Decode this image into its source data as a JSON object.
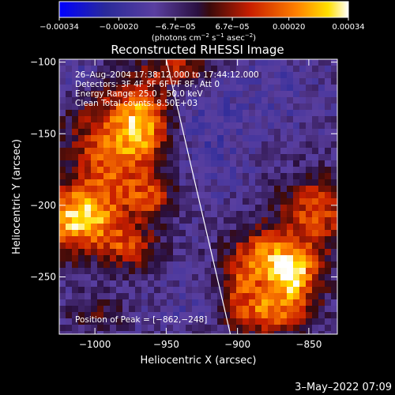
{
  "chart_data": {
    "type": "heatmap",
    "title": "Reconstructed RHESSI Image",
    "xlabel": "Heliocentric X (arcsec)",
    "ylabel": "Heliocentric Y (arcsec)",
    "xlim": [
      -1025,
      -830
    ],
    "ylim": [
      -290,
      -98
    ],
    "x_ticks": [
      -1000,
      -950,
      -900,
      -850
    ],
    "x_tick_labels": [
      "−1000",
      "−950",
      "−900",
      "−850"
    ],
    "y_ticks": [
      -250,
      -200,
      -150,
      -100
    ],
    "y_tick_labels": [
      "−250",
      "−200",
      "−150",
      "−100"
    ],
    "colorbar": {
      "range": [
        -0.00034,
        0.00034
      ],
      "ticks": [
        -0.00034,
        -0.0002,
        -6.7e-05,
        6.7e-05,
        0.0002,
        0.00034
      ],
      "tick_labels": [
        "−0.00034",
        "−0.00020",
        "−6.7e−05",
        "6.7e−05",
        "0.00020",
        "0.00034"
      ],
      "unit_parts": [
        "(photons cm",
        "−2",
        " s",
        "−1",
        " asec",
        "−2",
        ")"
      ]
    },
    "annotations": [
      "26–Aug–2004 17:38:12.000 to 17:44:12.000",
      "Detectors: 3F 4F 5F 6F 7F 8F, Att 0",
      "Energy Range: 25.0 – 50.0 keV",
      "Clean    Total counts: 8.50E+03"
    ],
    "peak_label": "Position of Peak = [−862,−248]",
    "limb_line": [
      [
        -950,
        -98
      ],
      [
        -905,
        -290
      ]
    ],
    "blobs": [
      {
        "x": -1012,
        "y": -210,
        "sx": 20,
        "sy": 16,
        "v": 0.00034
      },
      {
        "x": -985,
        "y": -160,
        "sx": 22,
        "sy": 30,
        "v": 0.00026
      },
      {
        "x": -965,
        "y": -140,
        "sx": 12,
        "sy": 16,
        "v": 0.0002
      },
      {
        "x": -975,
        "y": -230,
        "sx": 14,
        "sy": 10,
        "v": 0.00016
      },
      {
        "x": -960,
        "y": -195,
        "sx": 10,
        "sy": 10,
        "v": 0.00014
      },
      {
        "x": -940,
        "y": -105,
        "sx": 16,
        "sy": 8,
        "v": 0.00018
      },
      {
        "x": -862,
        "y": -248,
        "sx": 14,
        "sy": 14,
        "v": 0.00034
      },
      {
        "x": -845,
        "y": -205,
        "sx": 18,
        "sy": 18,
        "v": 0.00022
      },
      {
        "x": -885,
        "y": -235,
        "sx": 16,
        "sy": 14,
        "v": 0.0002
      },
      {
        "x": -880,
        "y": -275,
        "sx": 20,
        "sy": 12,
        "v": 0.00024
      },
      {
        "x": -900,
        "y": -255,
        "sx": 8,
        "sy": 10,
        "v": 0.00012
      },
      {
        "x": -1000,
        "y": -275,
        "sx": 14,
        "sy": 8,
        "v": 8e-05
      },
      {
        "x": -935,
        "y": -270,
        "sx": 14,
        "sy": 10,
        "v": -8e-05
      },
      {
        "x": -920,
        "y": -150,
        "sx": 20,
        "sy": 30,
        "v": -0.0001
      },
      {
        "x": -870,
        "y": -120,
        "sx": 20,
        "sy": 20,
        "v": -8e-05
      },
      {
        "x": -1010,
        "y": -110,
        "sx": 10,
        "sy": 10,
        "v": -0.00012
      }
    ]
  },
  "footer": {
    "date": "3–May–2022 07:09"
  }
}
